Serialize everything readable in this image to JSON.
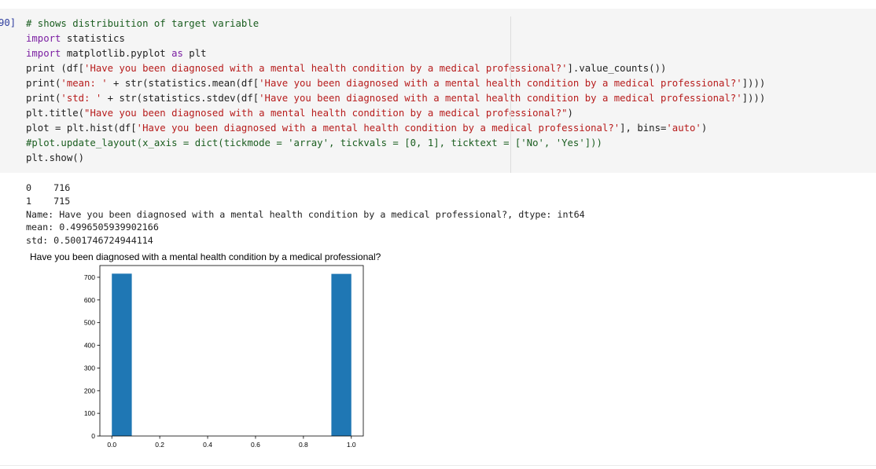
{
  "cell": {
    "prompt": "90]",
    "code_lines": [
      [
        {
          "t": "# shows distribuition of target variable",
          "c": "cm"
        }
      ],
      [
        {
          "t": "import",
          "c": "kw"
        },
        {
          "t": " statistics",
          "c": ""
        }
      ],
      [
        {
          "t": "import",
          "c": "kw"
        },
        {
          "t": " matplotlib.pyplot ",
          "c": ""
        },
        {
          "t": "as",
          "c": "kw"
        },
        {
          "t": " plt",
          "c": ""
        }
      ],
      [
        {
          "t": "print (df[",
          "c": ""
        },
        {
          "t": "'Have you been diagnosed with a mental health condition by a medical professional?'",
          "c": "str"
        },
        {
          "t": "].value_counts())",
          "c": ""
        }
      ],
      [
        {
          "t": "print(",
          "c": ""
        },
        {
          "t": "'mean: '",
          "c": "str"
        },
        {
          "t": " + str(statistics.mean(df[",
          "c": ""
        },
        {
          "t": "'Have you been diagnosed with a mental health condition by a medical professional?'",
          "c": "str"
        },
        {
          "t": "])))",
          "c": ""
        }
      ],
      [
        {
          "t": "print(",
          "c": ""
        },
        {
          "t": "'std: '",
          "c": "str"
        },
        {
          "t": " + str(statistics.stdev(df[",
          "c": ""
        },
        {
          "t": "'Have you been diagnosed with a mental health condition by a medical professional?'",
          "c": "str"
        },
        {
          "t": "])))",
          "c": ""
        }
      ],
      [
        {
          "t": "plt.title(",
          "c": ""
        },
        {
          "t": "\"Have you been diagnosed with a mental health condition by a medical professional?\"",
          "c": "str"
        },
        {
          "t": ")",
          "c": ""
        }
      ],
      [
        {
          "t": "plot = plt.hist(df[",
          "c": ""
        },
        {
          "t": "'Have you been diagnosed with a mental health condition by a medical professional?'",
          "c": "str"
        },
        {
          "t": "], bins=",
          "c": ""
        },
        {
          "t": "'auto'",
          "c": "str"
        },
        {
          "t": ")",
          "c": ""
        }
      ],
      [
        {
          "t": "#plot.update_layout(x_axis = dict(tickmode = 'array', tickvals = [0, 1], ticktext = ['No', 'Yes']))",
          "c": "cm"
        }
      ],
      [
        {
          "t": "plt.show()",
          "c": ""
        }
      ]
    ]
  },
  "output": {
    "lines": [
      "0    716",
      "1    715",
      "Name: Have you been diagnosed with a mental health condition by a medical professional?, dtype: int64",
      "mean: 0.4996505939902166",
      "std: 0.5001746724944114"
    ]
  },
  "chart_data": {
    "type": "bar",
    "title": "Have you been diagnosed with a mental health condition by a medical professional?",
    "xlabel": "",
    "ylabel": "",
    "bars": [
      {
        "x0": 0.0,
        "x1": 0.0833,
        "value": 716
      },
      {
        "x0": 0.9167,
        "x1": 1.0,
        "value": 715
      }
    ],
    "xlim": [
      -0.05,
      1.05
    ],
    "ylim": [
      0,
      751.8
    ],
    "xticks": [
      0.0,
      0.2,
      0.4,
      0.6,
      0.8,
      1.0
    ],
    "xtick_labels": [
      "0.0",
      "0.2",
      "0.4",
      "0.6",
      "0.8",
      "1.0"
    ],
    "yticks": [
      0,
      100,
      200,
      300,
      400,
      500,
      600,
      700
    ],
    "ytick_labels": [
      "0",
      "100",
      "200",
      "300",
      "400",
      "500",
      "600",
      "700"
    ],
    "bar_color": "#1f77b4",
    "grid": false
  }
}
